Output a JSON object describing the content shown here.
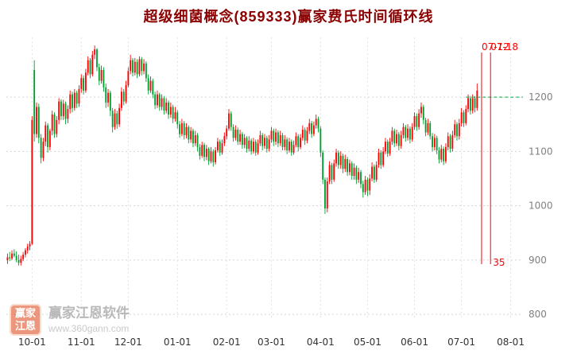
{
  "header": {
    "title": "超级细菌概念(859333)赢家费氏时间循环线"
  },
  "watermark": {
    "logo_line1": "赢家",
    "logo_line2": "江恩",
    "name": "赢家江恩软件",
    "url": "www.360gann.com"
  },
  "chart_data": {
    "type": "candlestick",
    "title": "超级细菌概念(859333)赢家费氏时间循环线",
    "x_tick_labels": [
      "10-01",
      "11-01",
      "12-01",
      "01-01",
      "02-01",
      "03-01",
      "04-01",
      "05-01",
      "06-01",
      "07-01",
      "08-01"
    ],
    "x_tick_indices": [
      11,
      33,
      54,
      76,
      98,
      118,
      140,
      161,
      182,
      203,
      225
    ],
    "x_index_range": [
      0,
      230
    ],
    "y_ticks": [
      1200,
      1100,
      1000,
      900,
      800
    ],
    "ylim": [
      790,
      1310
    ],
    "grid": true,
    "legend": "none",
    "colors": {
      "up": "#ff0000",
      "down": "#00a030",
      "grid_h": "#d5d5d5",
      "grid_v": "#e2e2e2",
      "fib": "#ff0000",
      "price_line": "#00aa44",
      "y_text": "#808080",
      "x_text": "#333333"
    },
    "price_line": {
      "value": 1200,
      "start_index": 205
    },
    "fib_lines": [
      {
        "label": "07-12",
        "index": 212
      },
      {
        "label": "07-18",
        "index": 216,
        "bottom_label": "35"
      }
    ],
    "candles": [
      [
        900,
        912,
        893,
        905
      ],
      [
        905,
        915,
        898,
        903
      ],
      [
        903,
        918,
        900,
        912
      ],
      [
        912,
        920,
        905,
        908
      ],
      [
        908,
        916,
        896,
        900
      ],
      [
        900,
        910,
        890,
        895
      ],
      [
        895,
        908,
        890,
        902
      ],
      [
        902,
        915,
        898,
        910
      ],
      [
        910,
        922,
        905,
        918
      ],
      [
        918,
        930,
        912,
        925
      ],
      [
        925,
        935,
        918,
        930
      ],
      [
        930,
        1165,
        928,
        1158
      ],
      [
        1250,
        1268,
        1118,
        1132
      ],
      [
        1132,
        1190,
        1125,
        1182
      ],
      [
        1182,
        1188,
        1115,
        1125
      ],
      [
        1125,
        1132,
        1078,
        1088
      ],
      [
        1088,
        1125,
        1082,
        1118
      ],
      [
        1118,
        1155,
        1110,
        1148
      ],
      [
        1148,
        1152,
        1098,
        1108
      ],
      [
        1108,
        1142,
        1102,
        1138
      ],
      [
        1138,
        1175,
        1130,
        1168
      ],
      [
        1168,
        1172,
        1125,
        1132
      ],
      [
        1132,
        1165,
        1126,
        1158
      ],
      [
        1158,
        1198,
        1150,
        1192
      ],
      [
        1192,
        1196,
        1158,
        1165
      ],
      [
        1165,
        1195,
        1158,
        1188
      ],
      [
        1188,
        1192,
        1150,
        1160
      ],
      [
        1160,
        1185,
        1152,
        1178
      ],
      [
        1178,
        1212,
        1170,
        1205
      ],
      [
        1205,
        1210,
        1172,
        1180
      ],
      [
        1180,
        1215,
        1175,
        1208
      ],
      [
        1208,
        1212,
        1180,
        1188
      ],
      [
        1188,
        1222,
        1182,
        1215
      ],
      [
        1215,
        1242,
        1208,
        1235
      ],
      [
        1235,
        1240,
        1205,
        1212
      ],
      [
        1212,
        1252,
        1208,
        1245
      ],
      [
        1245,
        1275,
        1240,
        1268
      ],
      [
        1268,
        1272,
        1235,
        1242
      ],
      [
        1242,
        1285,
        1238,
        1278
      ],
      [
        1278,
        1295,
        1270,
        1288
      ],
      [
        1288,
        1290,
        1248,
        1255
      ],
      [
        1255,
        1262,
        1222,
        1230
      ],
      [
        1230,
        1258,
        1225,
        1250
      ],
      [
        1250,
        1255,
        1210,
        1218
      ],
      [
        1218,
        1225,
        1180,
        1190
      ],
      [
        1190,
        1215,
        1182,
        1208
      ],
      [
        1208,
        1212,
        1165,
        1175
      ],
      [
        1175,
        1180,
        1135,
        1145
      ],
      [
        1145,
        1178,
        1140,
        1170
      ],
      [
        1170,
        1175,
        1142,
        1150
      ],
      [
        1150,
        1188,
        1145,
        1180
      ],
      [
        1180,
        1218,
        1175,
        1210
      ],
      [
        1210,
        1215,
        1185,
        1192
      ],
      [
        1192,
        1230,
        1188,
        1222
      ],
      [
        1222,
        1255,
        1218,
        1248
      ],
      [
        1248,
        1278,
        1242,
        1268
      ],
      [
        1268,
        1272,
        1238,
        1245
      ],
      [
        1245,
        1272,
        1240,
        1265
      ],
      [
        1265,
        1270,
        1235,
        1242
      ],
      [
        1242,
        1275,
        1238,
        1270
      ],
      [
        1270,
        1274,
        1240,
        1248
      ],
      [
        1248,
        1270,
        1242,
        1262
      ],
      [
        1262,
        1266,
        1228,
        1235
      ],
      [
        1235,
        1242,
        1205,
        1212
      ],
      [
        1212,
        1238,
        1208,
        1230
      ],
      [
        1230,
        1234,
        1198,
        1205
      ],
      [
        1205,
        1210,
        1178,
        1185
      ],
      [
        1185,
        1212,
        1180,
        1205
      ],
      [
        1205,
        1208,
        1175,
        1182
      ],
      [
        1182,
        1205,
        1176,
        1198
      ],
      [
        1198,
        1202,
        1168,
        1175
      ],
      [
        1175,
        1198,
        1170,
        1190
      ],
      [
        1190,
        1194,
        1160,
        1168
      ],
      [
        1168,
        1190,
        1162,
        1182
      ],
      [
        1182,
        1186,
        1152,
        1160
      ],
      [
        1160,
        1182,
        1155,
        1172
      ],
      [
        1172,
        1176,
        1142,
        1150
      ],
      [
        1150,
        1156,
        1125,
        1132
      ],
      [
        1132,
        1160,
        1128,
        1152
      ],
      [
        1152,
        1156,
        1122,
        1130
      ],
      [
        1130,
        1152,
        1124,
        1145
      ],
      [
        1145,
        1148,
        1115,
        1122
      ],
      [
        1122,
        1145,
        1116,
        1138
      ],
      [
        1138,
        1142,
        1108,
        1115
      ],
      [
        1115,
        1138,
        1110,
        1130
      ],
      [
        1130,
        1134,
        1100,
        1108
      ],
      [
        1108,
        1114,
        1085,
        1092
      ],
      [
        1092,
        1118,
        1088,
        1112
      ],
      [
        1112,
        1116,
        1082,
        1090
      ],
      [
        1090,
        1112,
        1084,
        1105
      ],
      [
        1105,
        1108,
        1075,
        1082
      ],
      [
        1082,
        1108,
        1078,
        1100
      ],
      [
        1100,
        1104,
        1072,
        1080
      ],
      [
        1080,
        1108,
        1076,
        1102
      ],
      [
        1102,
        1125,
        1098,
        1118
      ],
      [
        1118,
        1122,
        1092,
        1098
      ],
      [
        1098,
        1122,
        1094,
        1115
      ],
      [
        1115,
        1135,
        1110,
        1128
      ],
      [
        1128,
        1148,
        1122,
        1142
      ],
      [
        1142,
        1178,
        1138,
        1170
      ],
      [
        1170,
        1174,
        1138,
        1145
      ],
      [
        1145,
        1150,
        1118,
        1125
      ],
      [
        1125,
        1148,
        1120,
        1140
      ],
      [
        1140,
        1144,
        1112,
        1118
      ],
      [
        1118,
        1140,
        1112,
        1132
      ],
      [
        1132,
        1136,
        1105,
        1112
      ],
      [
        1112,
        1132,
        1106,
        1125
      ],
      [
        1125,
        1128,
        1098,
        1105
      ],
      [
        1105,
        1128,
        1100,
        1120
      ],
      [
        1120,
        1124,
        1094,
        1100
      ],
      [
        1100,
        1125,
        1096,
        1118
      ],
      [
        1118,
        1122,
        1092,
        1098
      ],
      [
        1098,
        1122,
        1094,
        1115
      ],
      [
        1115,
        1138,
        1110,
        1130
      ],
      [
        1130,
        1134,
        1102,
        1110
      ],
      [
        1110,
        1132,
        1105,
        1125
      ],
      [
        1125,
        1129,
        1098,
        1105
      ],
      [
        1105,
        1130,
        1100,
        1122
      ],
      [
        1122,
        1145,
        1116,
        1138
      ],
      [
        1138,
        1142,
        1110,
        1118
      ],
      [
        1118,
        1142,
        1112,
        1135
      ],
      [
        1135,
        1139,
        1108,
        1115
      ],
      [
        1115,
        1138,
        1110,
        1130
      ],
      [
        1130,
        1134,
        1102,
        1108
      ],
      [
        1108,
        1130,
        1102,
        1122
      ],
      [
        1122,
        1126,
        1095,
        1102
      ],
      [
        1102,
        1125,
        1098,
        1118
      ],
      [
        1118,
        1122,
        1092,
        1098
      ],
      [
        1098,
        1120,
        1094,
        1112
      ],
      [
        1112,
        1135,
        1108,
        1128
      ],
      [
        1128,
        1132,
        1100,
        1108
      ],
      [
        1108,
        1132,
        1104,
        1125
      ],
      [
        1125,
        1148,
        1120,
        1140
      ],
      [
        1140,
        1144,
        1112,
        1120
      ],
      [
        1120,
        1145,
        1115,
        1138
      ],
      [
        1138,
        1160,
        1132,
        1152
      ],
      [
        1152,
        1156,
        1125,
        1132
      ],
      [
        1132,
        1155,
        1128,
        1148
      ],
      [
        1148,
        1168,
        1142,
        1160
      ],
      [
        1160,
        1164,
        1135,
        1142
      ],
      [
        1142,
        1146,
        1090,
        1098
      ],
      [
        1098,
        1102,
        1040,
        1048
      ],
      [
        1048,
        1052,
        985,
        995
      ],
      [
        995,
        1052,
        988,
        1045
      ],
      [
        1045,
        1082,
        1040,
        1075
      ],
      [
        1075,
        1079,
        1040,
        1048
      ],
      [
        1048,
        1085,
        1044,
        1078
      ],
      [
        1078,
        1105,
        1072,
        1098
      ],
      [
        1098,
        1102,
        1068,
        1075
      ],
      [
        1075,
        1100,
        1068,
        1092
      ],
      [
        1092,
        1096,
        1060,
        1068
      ],
      [
        1068,
        1094,
        1062,
        1086
      ],
      [
        1086,
        1090,
        1055,
        1062
      ],
      [
        1062,
        1085,
        1056,
        1078
      ],
      [
        1078,
        1082,
        1048,
        1055
      ],
      [
        1055,
        1078,
        1048,
        1070
      ],
      [
        1070,
        1074,
        1040,
        1048
      ],
      [
        1048,
        1070,
        1042,
        1062
      ],
      [
        1062,
        1066,
        1032,
        1040
      ],
      [
        1040,
        1046,
        1015,
        1025
      ],
      [
        1025,
        1055,
        1020,
        1048
      ],
      [
        1048,
        1052,
        1018,
        1028
      ],
      [
        1028,
        1058,
        1020,
        1050
      ],
      [
        1050,
        1080,
        1045,
        1072
      ],
      [
        1072,
        1076,
        1042,
        1048
      ],
      [
        1048,
        1082,
        1044,
        1075
      ],
      [
        1075,
        1105,
        1070,
        1098
      ],
      [
        1098,
        1102,
        1068,
        1075
      ],
      [
        1075,
        1108,
        1071,
        1100
      ],
      [
        1100,
        1125,
        1095,
        1118
      ],
      [
        1118,
        1122,
        1090,
        1096
      ],
      [
        1096,
        1125,
        1092,
        1118
      ],
      [
        1118,
        1145,
        1112,
        1138
      ],
      [
        1138,
        1142,
        1108,
        1115
      ],
      [
        1115,
        1140,
        1110,
        1132
      ],
      [
        1132,
        1136,
        1102,
        1110
      ],
      [
        1110,
        1138,
        1105,
        1130
      ],
      [
        1130,
        1152,
        1124,
        1145
      ],
      [
        1145,
        1149,
        1118,
        1125
      ],
      [
        1125,
        1150,
        1120,
        1142
      ],
      [
        1142,
        1146,
        1115,
        1122
      ],
      [
        1122,
        1152,
        1118,
        1145
      ],
      [
        1145,
        1172,
        1140,
        1165
      ],
      [
        1165,
        1170,
        1138,
        1145
      ],
      [
        1145,
        1178,
        1140,
        1170
      ],
      [
        1170,
        1190,
        1162,
        1182
      ],
      [
        1182,
        1186,
        1150,
        1158
      ],
      [
        1158,
        1162,
        1128,
        1135
      ],
      [
        1135,
        1160,
        1130,
        1152
      ],
      [
        1152,
        1156,
        1122,
        1128
      ],
      [
        1128,
        1134,
        1100,
        1108
      ],
      [
        1108,
        1132,
        1102,
        1125
      ],
      [
        1125,
        1129,
        1095,
        1102
      ],
      [
        1102,
        1108,
        1078,
        1085
      ],
      [
        1085,
        1112,
        1080,
        1105
      ],
      [
        1105,
        1109,
        1075,
        1082
      ],
      [
        1082,
        1115,
        1078,
        1108
      ],
      [
        1108,
        1135,
        1102,
        1128
      ],
      [
        1128,
        1132,
        1098,
        1105
      ],
      [
        1105,
        1138,
        1100,
        1130
      ],
      [
        1130,
        1158,
        1125,
        1150
      ],
      [
        1150,
        1154,
        1120,
        1128
      ],
      [
        1128,
        1160,
        1122,
        1152
      ],
      [
        1152,
        1180,
        1146,
        1172
      ],
      [
        1172,
        1176,
        1145,
        1152
      ],
      [
        1152,
        1185,
        1148,
        1178
      ],
      [
        1178,
        1205,
        1172,
        1198
      ],
      [
        1198,
        1202,
        1168,
        1175
      ],
      [
        1175,
        1205,
        1170,
        1198
      ],
      [
        1198,
        1202,
        1172,
        1180
      ],
      [
        1180,
        1225,
        1175,
        1212
      ]
    ]
  }
}
